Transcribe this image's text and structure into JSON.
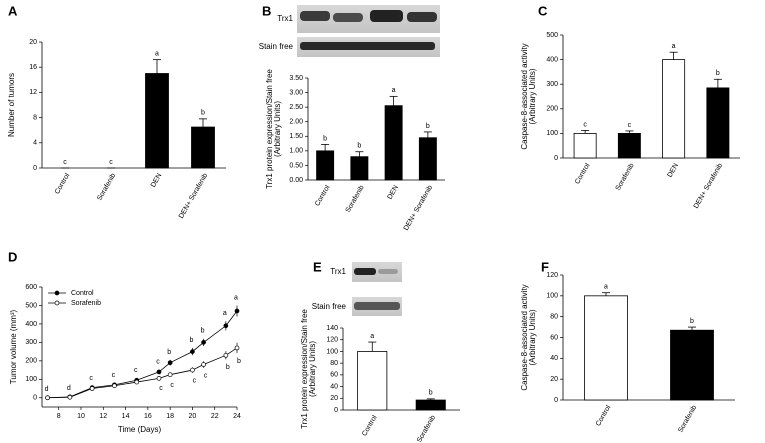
{
  "chart_data": [
    {
      "type": "bar",
      "label": "A",
      "ylabel": [
        "Number of tumors"
      ],
      "categories": [
        "Control",
        "Sorafenib",
        "DEN",
        "DEN+ Sorafenib"
      ],
      "values": [
        0,
        0,
        15,
        6.5
      ],
      "errors": [
        0,
        0,
        2.2,
        1.3
      ],
      "value_labels": [
        "c",
        "c",
        "a",
        "b"
      ],
      "colors": [
        "#000000",
        "#000000",
        "#000000",
        "#000000"
      ],
      "ylim": [
        0,
        20
      ],
      "yticks": [
        0,
        4,
        8,
        12,
        16,
        20
      ]
    },
    {
      "type": "bar",
      "label": "B",
      "blot_labels": [
        "Trx1",
        "Stain free"
      ],
      "ylabel": [
        "Trx1 protein expression/Stain free",
        "(Arbitrary Units)"
      ],
      "categories": [
        "Control",
        "Sorafenib",
        "DEN",
        "DEN+ Sorafenib"
      ],
      "values": [
        1.0,
        0.8,
        2.55,
        1.45
      ],
      "errors": [
        0.22,
        0.17,
        0.32,
        0.2
      ],
      "value_labels": [
        "b",
        "b",
        "a",
        "b"
      ],
      "colors": [
        "#000000",
        "#000000",
        "#000000",
        "#000000"
      ],
      "ylim": [
        0,
        3.5
      ],
      "yticks": [
        {
          "value": 0,
          "label": "0.00"
        },
        {
          "value": 0.5,
          "label": "0.50"
        },
        {
          "value": 1,
          "label": "1.00"
        },
        {
          "value": 1.5,
          "label": "1.50"
        },
        {
          "value": 2,
          "label": "2.00"
        },
        {
          "value": 2.5,
          "label": "2.50"
        },
        {
          "value": 3,
          "label": "3.00"
        },
        {
          "value": 3.5,
          "label": "3.50"
        }
      ]
    },
    {
      "type": "bar",
      "label": "C",
      "ylabel": [
        "Caspase-8-associated activity",
        "(Arbitrary Units)"
      ],
      "categories": [
        "Control",
        "Sorafenib",
        "DEN",
        "DEN+ Sorafenib"
      ],
      "values": [
        100,
        100,
        400,
        285
      ],
      "errors": [
        12,
        10,
        30,
        35
      ],
      "value_labels": [
        "c",
        "c",
        "a",
        "b"
      ],
      "colors": [
        "#ffffff",
        "#000000",
        "#ffffff",
        "#000000"
      ],
      "ylim": [
        0,
        500
      ],
      "yticks": [
        0,
        100,
        200,
        300,
        400,
        500
      ]
    },
    {
      "type": "line",
      "label": "D",
      "xlabel": "Time (Days)",
      "ylabel": [
        "Tumor volume (mm³)"
      ],
      "x": [
        7,
        9,
        11,
        13,
        15,
        17,
        18,
        20,
        21,
        23,
        24
      ],
      "series": [
        {
          "name": "Control",
          "color": "#000000",
          "fill": "#000000",
          "values": [
            0,
            5,
            55,
            70,
            95,
            140,
            190,
            250,
            300,
            390,
            470
          ],
          "errors": [
            3,
            4,
            8,
            8,
            10,
            12,
            15,
            20,
            20,
            25,
            30
          ],
          "value_labels": [
            "d",
            "d",
            "c",
            "c",
            "c",
            "c",
            "b",
            "b",
            "b",
            "a",
            "a"
          ]
        },
        {
          "name": "Sorafenib",
          "color": "#000000",
          "fill": "#ffffff",
          "values": [
            0,
            3,
            50,
            65,
            85,
            105,
            125,
            150,
            180,
            230,
            270
          ],
          "errors": [
            3,
            3,
            6,
            7,
            8,
            10,
            12,
            15,
            18,
            22,
            28
          ],
          "value_labels": [
            null,
            null,
            null,
            null,
            null,
            "c",
            "c",
            "c",
            "c",
            "b",
            "b"
          ]
        }
      ],
      "xlim": [
        6.5,
        24
      ],
      "xticks": [
        8,
        10,
        12,
        14,
        16,
        18,
        20,
        22,
        24
      ],
      "ylim": [
        -50,
        600
      ],
      "yticks": [
        0,
        100,
        200,
        300,
        400,
        500,
        600
      ],
      "legend": "upper left"
    },
    {
      "type": "bar",
      "label": "E",
      "blot_labels": [
        "Trx1",
        "Stain free"
      ],
      "ylabel": [
        "Trx1 protein expression/Stain free",
        "(Arbitrary Units)"
      ],
      "categories": [
        "Control",
        "Sorafenib"
      ],
      "values": [
        100,
        17
      ],
      "errors": [
        16,
        2
      ],
      "value_labels": [
        "a",
        "b"
      ],
      "colors": [
        "#ffffff",
        "#000000"
      ],
      "ylim": [
        0,
        140
      ],
      "yticks": [
        0,
        20,
        40,
        60,
        80,
        100,
        120,
        140
      ]
    },
    {
      "type": "bar",
      "label": "F",
      "ylabel": [
        "Caspase-8-associated activity",
        "(Arbitrary Units)"
      ],
      "categories": [
        "Control",
        "Sorafenib"
      ],
      "values": [
        100,
        67
      ],
      "errors": [
        3,
        3
      ],
      "value_labels": [
        "a",
        "b"
      ],
      "colors": [
        "#ffffff",
        "#000000"
      ],
      "ylim": [
        0,
        120
      ],
      "yticks": [
        0,
        20,
        40,
        60,
        80,
        100,
        120
      ]
    }
  ]
}
